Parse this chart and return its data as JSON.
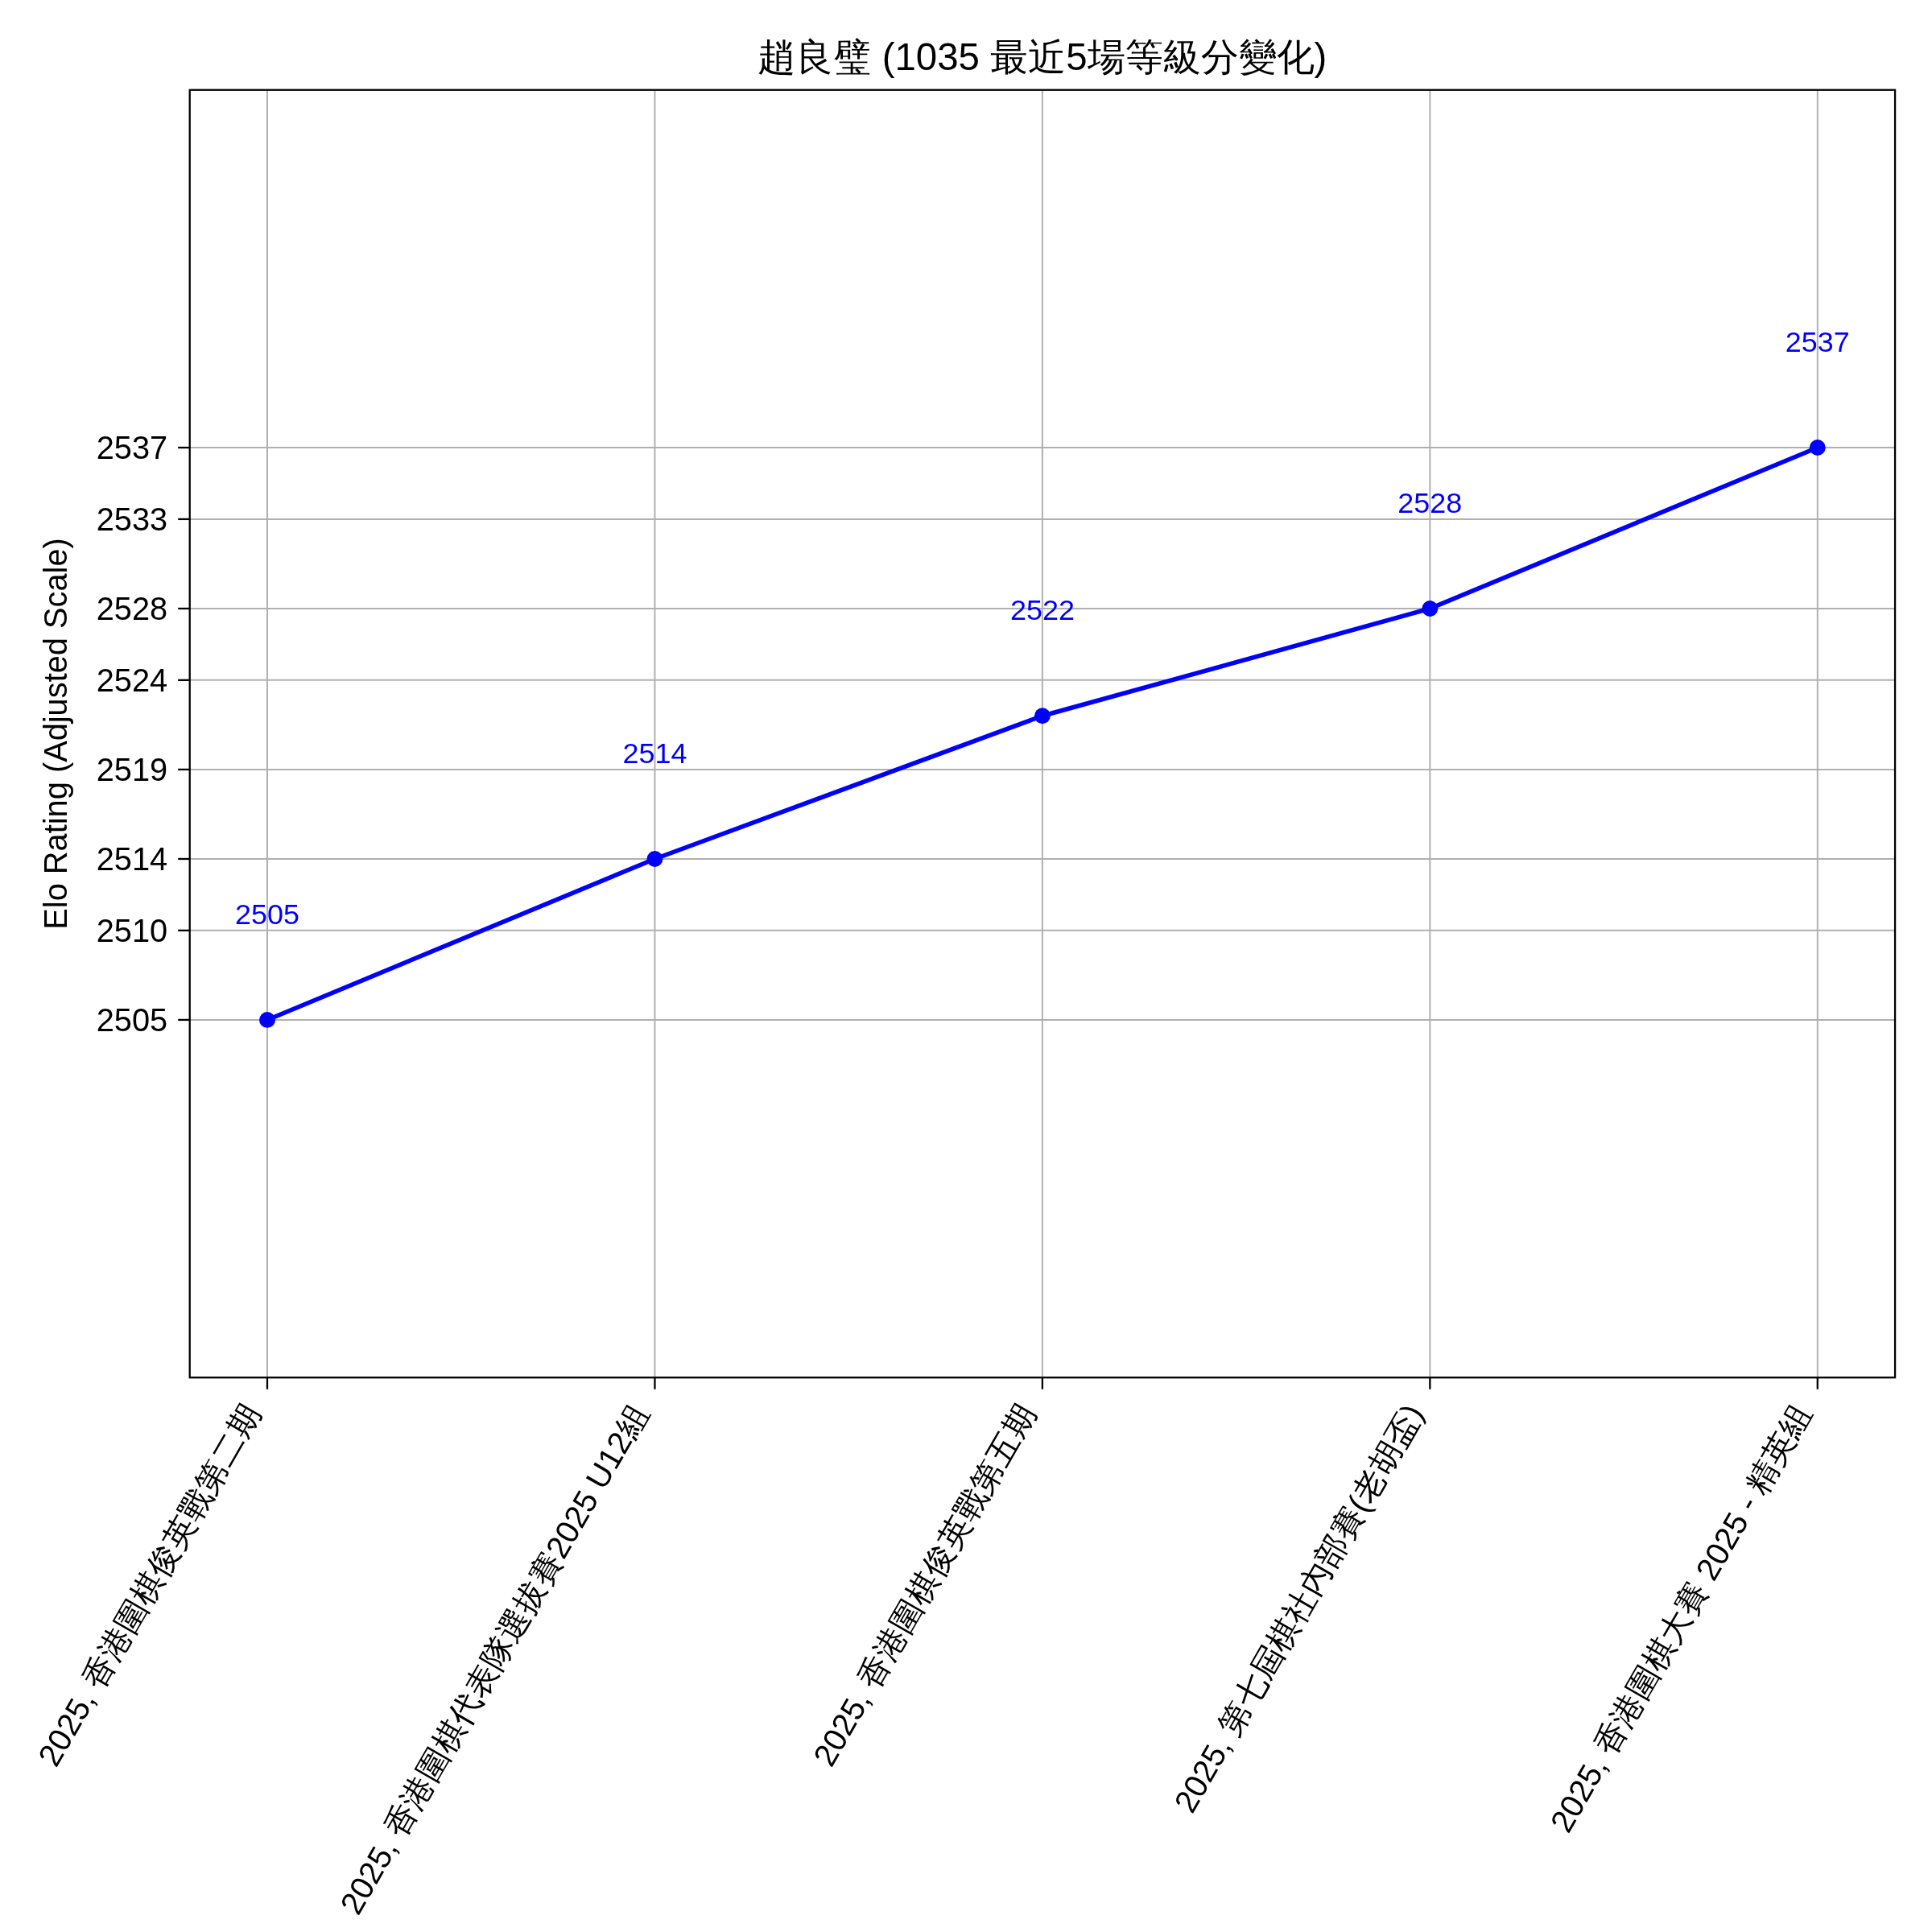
{
  "chart_data": {
    "type": "line",
    "title": "趙良璧 (1035 最近5場等級分變化)",
    "ylabel": "Elo Rating (Adjusted Scale)",
    "categories": [
      "2025, 香港圍棋俊英戰第二期",
      "2025, 香港圍棋代表隊選拔賽2025 U12組",
      "2025, 香港圍棋俊英戰第五期",
      "2025, 第七屆棋社內部賽(老胡盃)",
      "2025, 香港圍棋大賽 2025 - 精英組"
    ],
    "values": [
      2505,
      2514,
      2522,
      2528,
      2537
    ],
    "color": "#0000ff",
    "ylim": [
      2485,
      2557
    ],
    "yticks": [
      2505,
      2510,
      2514,
      2519,
      2524,
      2528,
      2533,
      2537
    ],
    "grid": true,
    "marker": "circle",
    "line_style": "solid",
    "data_labels": true
  }
}
